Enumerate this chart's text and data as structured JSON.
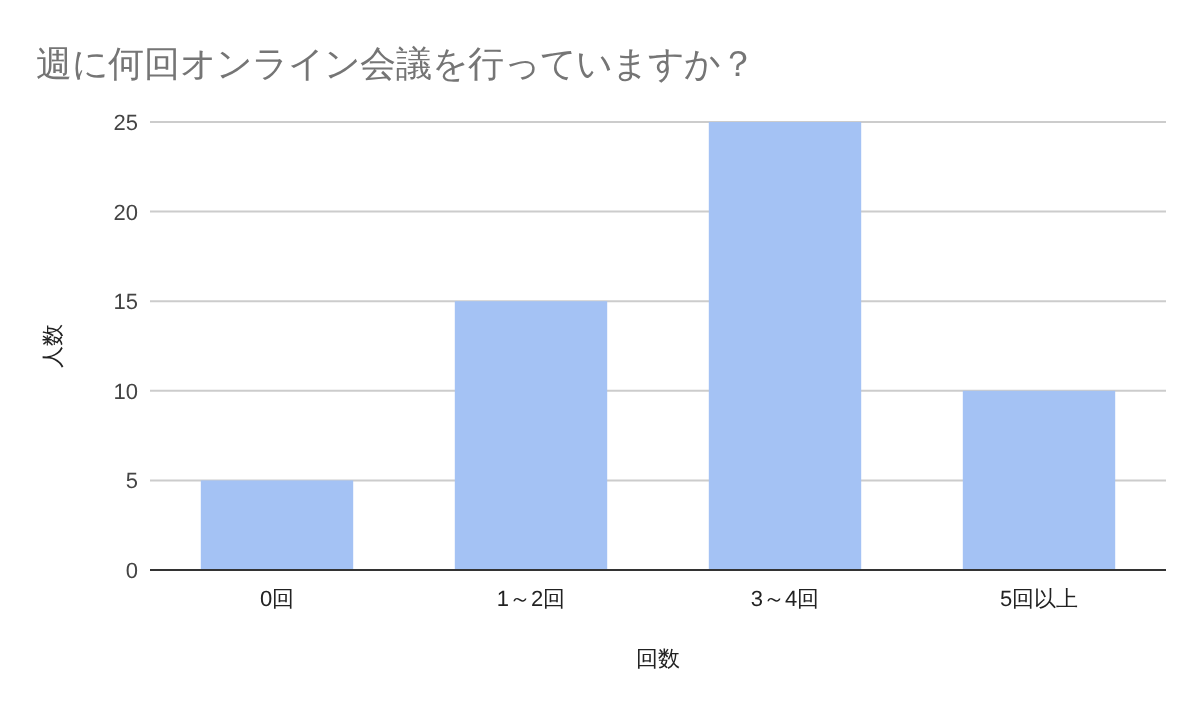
{
  "chart_data": {
    "type": "bar",
    "title": "週に何回オンライン会議を行っていますか？",
    "xlabel": "回数",
    "ylabel": "人数",
    "categories": [
      "0回",
      "1～2回",
      "3～4回",
      "5回以上"
    ],
    "values": [
      5,
      15,
      25,
      10
    ],
    "color": "#a4c2f4",
    "ylim": [
      0,
      25
    ],
    "yticks": [
      0,
      5,
      10,
      15,
      20,
      25
    ],
    "grid": "y"
  }
}
